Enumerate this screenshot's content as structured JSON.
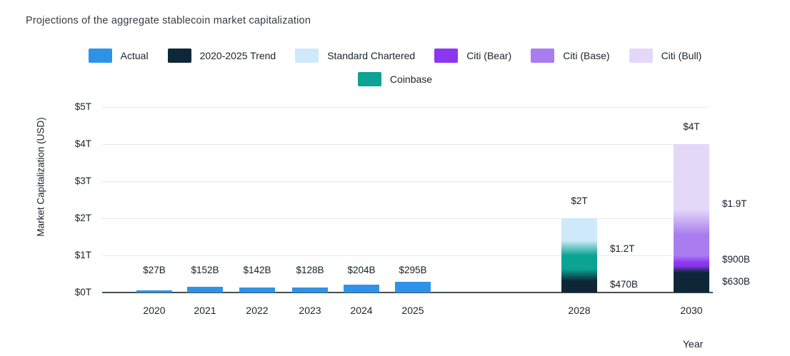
{
  "title": "Projections of the aggregate stablecoin market capitalization",
  "legend": [
    {
      "label": "Actual",
      "color": "#2E93E8",
      "row": 1
    },
    {
      "label": "2020-2025 Trend",
      "color": "#0E2738",
      "row": 1
    },
    {
      "label": "Standard Chartered",
      "color": "#CDE9FA",
      "row": 1
    },
    {
      "label": "Citi (Bear)",
      "color": "#8B36F1",
      "row": 1
    },
    {
      "label": "Citi (Base)",
      "color": "#A97CEF",
      "row": 1
    },
    {
      "label": "Citi (Bull)",
      "color": "#E4D8F8",
      "row": 1
    },
    {
      "label": "Coinbase",
      "color": "#0BA392",
      "row": 2
    }
  ],
  "y_axis": {
    "label": "Market Capitalization (USD)",
    "ticks": [
      {
        "label": "$5T",
        "value_t": 5
      },
      {
        "label": "$4T",
        "value_t": 4
      },
      {
        "label": "$3T",
        "value_t": 3
      },
      {
        "label": "$2T",
        "value_t": 2
      },
      {
        "label": "$1T",
        "value_t": 1
      },
      {
        "label": "$0T",
        "value_t": 0
      }
    ]
  },
  "x_axis": {
    "label": "Year"
  },
  "chart_data": {
    "type": "bar",
    "stacked": true,
    "title": "Projections of the aggregate stablecoin market capitalization",
    "xlabel": "Year",
    "ylabel": "Market Capitalization (USD)",
    "ylim_trillions": [
      0,
      5
    ],
    "grid": "horizontal",
    "legend_position": "top-center",
    "units": "billions USD",
    "categories": [
      "2020",
      "2021",
      "2022",
      "2023",
      "2024",
      "2025",
      "2028",
      "2030"
    ],
    "bars": [
      {
        "category": "2020",
        "segments": [
          {
            "series": "Actual",
            "from_b": 0,
            "to_b": 27,
            "label": "$27B",
            "label_pos": "above"
          }
        ]
      },
      {
        "category": "2021",
        "segments": [
          {
            "series": "Actual",
            "from_b": 0,
            "to_b": 152,
            "label": "$152B",
            "label_pos": "above"
          }
        ]
      },
      {
        "category": "2022",
        "segments": [
          {
            "series": "Actual",
            "from_b": 0,
            "to_b": 142,
            "label": "$142B",
            "label_pos": "above"
          }
        ]
      },
      {
        "category": "2023",
        "segments": [
          {
            "series": "Actual",
            "from_b": 0,
            "to_b": 128,
            "label": "$128B",
            "label_pos": "above"
          }
        ]
      },
      {
        "category": "2024",
        "segments": [
          {
            "series": "Actual",
            "from_b": 0,
            "to_b": 204,
            "label": "$204B",
            "label_pos": "above"
          }
        ]
      },
      {
        "category": "2025",
        "segments": [
          {
            "series": "Actual",
            "from_b": 0,
            "to_b": 295,
            "label": "$295B",
            "label_pos": "above"
          }
        ]
      },
      {
        "category": "2028",
        "segments": [
          {
            "series": "2020-2025 Trend",
            "from_b": 0,
            "to_b": 470,
            "label": "$470B",
            "label_pos": "right-middle"
          },
          {
            "series": "Coinbase",
            "from_b": 470,
            "to_b": 1200,
            "label": "$1.2T",
            "label_pos": "right-top"
          },
          {
            "series": "Standard Chartered",
            "from_b": 1200,
            "to_b": 2000,
            "label": "$2T",
            "label_pos": "above"
          }
        ]
      },
      {
        "category": "2030",
        "segments": [
          {
            "series": "2020-2025 Trend",
            "from_b": 0,
            "to_b": 630,
            "label": "$630B",
            "label_pos": "right-middle"
          },
          {
            "series": "Citi (Bear)",
            "from_b": 630,
            "to_b": 900,
            "label": "$900B",
            "label_pos": "right-top"
          },
          {
            "series": "Citi (Base)",
            "from_b": 900,
            "to_b": 1900,
            "label": "$1.9T",
            "label_pos": "right-top"
          },
          {
            "series": "Citi (Bull)",
            "from_b": 1900,
            "to_b": 4000,
            "label": "$4T",
            "label_pos": "above"
          }
        ]
      }
    ]
  }
}
